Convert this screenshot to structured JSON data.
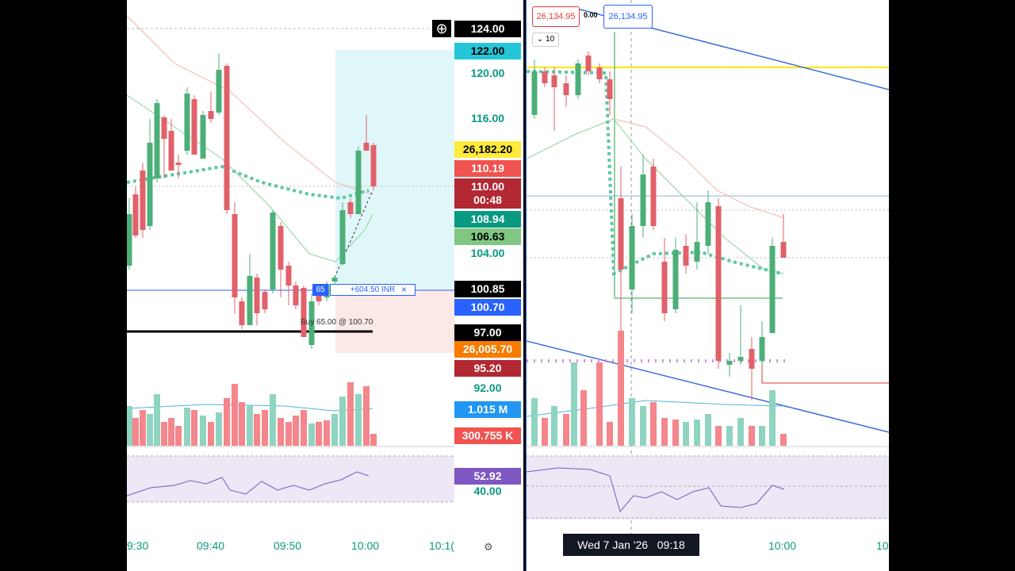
{
  "left_panel": {
    "price_labels": [
      "124.00",
      "122.00",
      "120.00",
      "116.00",
      "26,182.20",
      "110.19",
      "110.00",
      "00:48",
      "108.94",
      "106.63",
      "104.00",
      "100.85",
      "100.70",
      "97.00",
      "26,005.70",
      "95.20",
      "92.00",
      "1.015 M",
      "300.755 K",
      "52.92",
      "40.00"
    ],
    "time_labels": [
      "9:30",
      "09:40",
      "09:50",
      "10:00",
      "10:1("
    ],
    "order": {
      "qty": "65",
      "pnl": "+604.50 INR",
      "close": "×",
      "fill_note": "Buy 65.00 @ 100.70"
    }
  },
  "right_panel": {
    "bid": "26,134.95",
    "spread": "0.00",
    "ask": "26,134.95",
    "lot": "10",
    "crosshair_date": "Wed 7 Jan '26",
    "crosshair_time": "09:18",
    "time_labels": [
      "10:00",
      "10"
    ]
  }
}
